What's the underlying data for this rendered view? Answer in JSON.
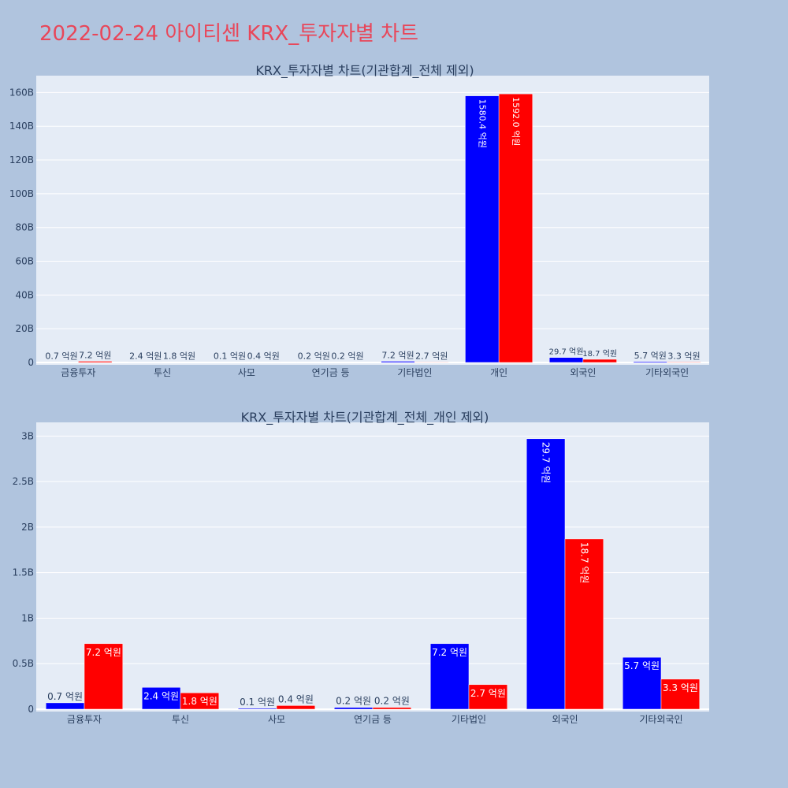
{
  "page": {
    "title": "2022-02-24 아이티센 KRX_투자자별 차트",
    "title_color": "#e8475a",
    "background": "#b0c4de",
    "plot_background": "#e5ecf6"
  },
  "chart_data": [
    {
      "type": "bar",
      "title": "KRX_투자자별 차트(기관합계_전체 제외)",
      "categories": [
        "금융투자",
        "투신",
        "사모",
        "연기금 등",
        "기타법인",
        "개인",
        "외국인",
        "기타외국인"
      ],
      "series": [
        {
          "color": "#0000ff",
          "values": [
            0.07,
            0.24,
            0.01,
            0.02,
            0.72,
            158.04,
            2.97,
            0.57
          ],
          "labels": [
            "0.7 억원",
            "2.4 억원",
            "0.1 억원",
            "0.2 억원",
            "7.2 억원",
            "1580.4 억원",
            "29.7 억원",
            "5.7 억원"
          ]
        },
        {
          "color": "#ff0000",
          "values": [
            0.72,
            0.18,
            0.04,
            0.02,
            0.27,
            159.2,
            1.87,
            0.33
          ],
          "labels": [
            "7.2 억원",
            "1.8 억원",
            "0.4 억원",
            "0.2 억원",
            "2.7 억원",
            "1592.0 억원",
            "18.7 억원",
            "3.3 억원"
          ]
        }
      ],
      "ylim": [
        0,
        170
      ],
      "yticks": [
        0,
        20,
        40,
        60,
        80,
        100,
        120,
        140,
        160
      ],
      "ytick_labels": [
        "0",
        "20B",
        "40B",
        "60B",
        "80B",
        "100B",
        "120B",
        "140B",
        "160B"
      ],
      "grid": true,
      "legend": "none"
    },
    {
      "type": "bar",
      "title": "KRX_투자자별 차트(기관합계_전체_개인 제외)",
      "categories": [
        "금융투자",
        "투신",
        "사모",
        "연기금 등",
        "기타법인",
        "외국인",
        "기타외국인"
      ],
      "series": [
        {
          "color": "#0000ff",
          "values": [
            0.07,
            0.24,
            0.01,
            0.02,
            0.72,
            2.97,
            0.57
          ],
          "labels": [
            "0.7 억원",
            "2.4 억원",
            "0.1 억원",
            "0.2 억원",
            "7.2 억원",
            "29.7 억원",
            "5.7 억원"
          ]
        },
        {
          "color": "#ff0000",
          "values": [
            0.72,
            0.18,
            0.04,
            0.02,
            0.27,
            1.87,
            0.33
          ],
          "labels": [
            "7.2 억원",
            "1.8 억원",
            "0.4 억원",
            "0.2 억원",
            "2.7 억원",
            "18.7 억원",
            "3.3 억원"
          ]
        }
      ],
      "ylim": [
        0,
        3.15
      ],
      "yticks": [
        0,
        0.5,
        1,
        1.5,
        2,
        2.5,
        3
      ],
      "ytick_labels": [
        "0",
        "0.5B",
        "1B",
        "1.5B",
        "2B",
        "2.5B",
        "3B"
      ],
      "grid": true,
      "legend": "none"
    }
  ]
}
